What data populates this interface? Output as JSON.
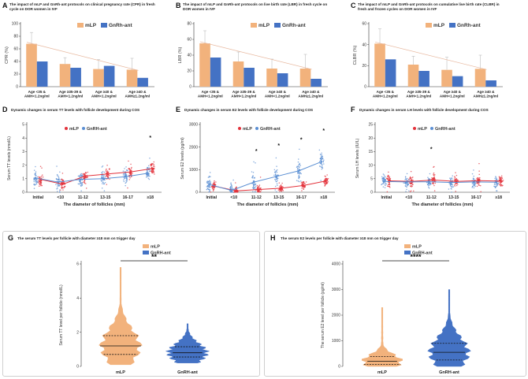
{
  "colors": {
    "mlp": "#f2b27c",
    "gnrh": "#4472c4",
    "mlp_dot": "#e3323b",
    "gnrh_dot": "#5b8fd3",
    "trend": "#e8b9a0",
    "err": "#bdbdbd"
  },
  "legend": {
    "mlp": "mLP",
    "gnrh": "GnRh-ant",
    "gnrh_alt": "GnRH-ant"
  },
  "chart_data": [
    {
      "id": "A",
      "type": "bar",
      "title": "The impact of mLP and GnRh-ant protocols on clinical pregnancy rate (CPR) in fresh cycle on DOR women in IVF",
      "ylabel": "CPR (%)",
      "ylim": [
        0,
        100
      ],
      "yticks": [
        0,
        20,
        40,
        60,
        80,
        100
      ],
      "categories": [
        "Age <35 & AMH<1.2ng/ml",
        "Age ≥35-39 & AMH<1.2ng/ml",
        "Age ≥40 & AMH<1.2ng/ml",
        "Age ≥40 & AMH≥1.2ng/ml"
      ],
      "series": [
        {
          "name": "mLP",
          "values": [
            68,
            36,
            28,
            27
          ],
          "err": [
            18,
            10,
            15,
            18
          ]
        },
        {
          "name": "GnRh-ant",
          "values": [
            40,
            30,
            33,
            14
          ],
          "err": [
            0,
            0,
            0,
            0
          ]
        }
      ]
    },
    {
      "id": "B",
      "type": "bar",
      "title": "The impact of mLP and GnRh-ant protocols on live birth rate (LBR) in fresh cycle on DOR women in IVF",
      "ylabel": "LBR (%)",
      "ylim": [
        0,
        80
      ],
      "yticks": [
        0,
        20,
        40,
        60,
        80
      ],
      "categories": [
        "Age <35 & AMH<1.2ng/ml",
        "Age ≥35-39 & AMH<1.2ng/ml",
        "Age ≥40 & AMH<1.2ng/ml",
        "Age ≥40 & AMH≥1.2ng/ml"
      ],
      "series": [
        {
          "name": "mLP",
          "values": [
            55,
            32,
            23,
            23
          ],
          "err": [
            16,
            12,
            12,
            18
          ]
        },
        {
          "name": "GnRh-ant",
          "values": [
            37,
            24,
            17,
            10
          ],
          "err": [
            0,
            0,
            0,
            0
          ]
        }
      ]
    },
    {
      "id": "C",
      "type": "bar",
      "title": "The impact of mLP and GnRh-ant protocols on cumulative live birth rate (CLBR) in fresh and frozen cycles on DOR women in IVF",
      "ylabel": "CLBR (%)",
      "ylim": [
        0,
        60
      ],
      "yticks": [
        0,
        20,
        40,
        60
      ],
      "categories": [
        "Age <35 & AMH<1.2ng/ml",
        "Age ≥35-39 & AMH<1.2ng/ml",
        "Age ≥40 & AMH<1.2ng/ml",
        "Age ≥40 & AMH≥1.2ng/ml"
      ],
      "series": [
        {
          "name": "mLP",
          "values": [
            41,
            21,
            16,
            17
          ],
          "err": [
            14,
            8,
            12,
            13
          ]
        },
        {
          "name": "GnRh-ant",
          "values": [
            26,
            15,
            10,
            6
          ],
          "err": [
            0,
            0,
            0,
            0
          ]
        }
      ]
    },
    {
      "id": "D",
      "type": "scatter",
      "title": "Dynamic changes in serum TT levels with follicle development during COS",
      "ylabel": "Serum TT levels (nmol/L)",
      "xlabel": "The diameter of follicles (mm)",
      "ylim": [
        0,
        5
      ],
      "yticks": [
        0,
        1,
        2,
        3,
        4,
        5
      ],
      "categories": [
        "Initial",
        "<10",
        "11-12",
        "13-15",
        "16-17",
        "≥18"
      ],
      "series": [
        {
          "name": "mLP",
          "values": [
            0.95,
            0.6,
            1.2,
            1.35,
            1.5,
            1.75
          ],
          "spread": 0.8
        },
        {
          "name": "GnRH-ant",
          "values": [
            1.05,
            0.75,
            0.95,
            1.0,
            1.15,
            1.4
          ],
          "spread": 0.9
        }
      ],
      "significant": [
        "≥18"
      ]
    },
    {
      "id": "E",
      "type": "scatter",
      "title": "Dynamic changes in serum E2 levels with follicle development during COS",
      "ylabel": "Serum E2 levels (pg/ml)",
      "xlabel": "The diameter of follicles (mm)",
      "ylim": [
        0,
        3000
      ],
      "yticks": [
        0,
        1000,
        2000,
        3000
      ],
      "categories": [
        "Initial",
        "<10",
        "11-12",
        "13-15",
        "16-17",
        "≥18"
      ],
      "series": [
        {
          "name": "mLP",
          "values": [
            280,
            60,
            120,
            180,
            300,
            500
          ],
          "spread": 300
        },
        {
          "name": "GnRH-ant",
          "values": [
            350,
            80,
            450,
            700,
            950,
            1350
          ],
          "spread": 700
        }
      ],
      "significant": [
        "11-12",
        "13-15",
        "16-17",
        "≥18"
      ]
    },
    {
      "id": "F",
      "type": "scatter",
      "title": "Dynamic changes in serum LH levels with follicle development during COS",
      "ylabel": "Serum LH levels (IU/L)",
      "xlabel": "The diameter of follicles (mm)",
      "ylim": [
        0,
        25
      ],
      "yticks": [
        0,
        5,
        10,
        15,
        20,
        25
      ],
      "categories": [
        "Initial",
        "<10",
        "11-12",
        "13-15",
        "16-17",
        "≥18"
      ],
      "series": [
        {
          "name": "mLP",
          "values": [
            4.2,
            4.0,
            4.5,
            4.0,
            4.3,
            4.1
          ],
          "spread": 3.5
        },
        {
          "name": "GnRH-ant",
          "values": [
            4.0,
            3.8,
            3.9,
            3.6,
            3.8,
            3.7
          ],
          "spread": 3.5
        }
      ],
      "significant": [
        "11-12"
      ]
    },
    {
      "id": "G",
      "type": "violin",
      "title": "The serum TT levels per follicle with diameter ≥18 mm on trigger day",
      "ylabel": "Serum TT level per follicle (nmol/L)",
      "ylim": [
        0,
        6
      ],
      "yticks": [
        0,
        2,
        4,
        6
      ],
      "categories": [
        "mLP",
        "GnRH-ant"
      ],
      "series": [
        {
          "name": "mLP",
          "median": 1.2,
          "q1": 0.7,
          "q3": 1.8,
          "min": 0.1,
          "max": 5.8
        },
        {
          "name": "GnRH-ant",
          "median": 0.8,
          "q1": 0.55,
          "q3": 1.15,
          "min": 0.2,
          "max": 2.5
        }
      ],
      "significance": "**"
    },
    {
      "id": "H",
      "type": "violin",
      "title": "The serum E2 levels per follicle with diameter ≥18 mm on trigger day",
      "ylabel": "The serum E2 level per follicle (pg/ml)",
      "ylim": [
        0,
        4000
      ],
      "yticks": [
        0,
        1000,
        2000,
        3000,
        4000
      ],
      "categories": [
        "mLP",
        "GnRH-ant"
      ],
      "series": [
        {
          "name": "mLP",
          "median": 200,
          "q1": 80,
          "q3": 380,
          "min": 0,
          "max": 2300
        },
        {
          "name": "GnRH-ant",
          "median": 550,
          "q1": 250,
          "q3": 900,
          "min": 0,
          "max": 3000
        }
      ],
      "significance": "****"
    }
  ]
}
